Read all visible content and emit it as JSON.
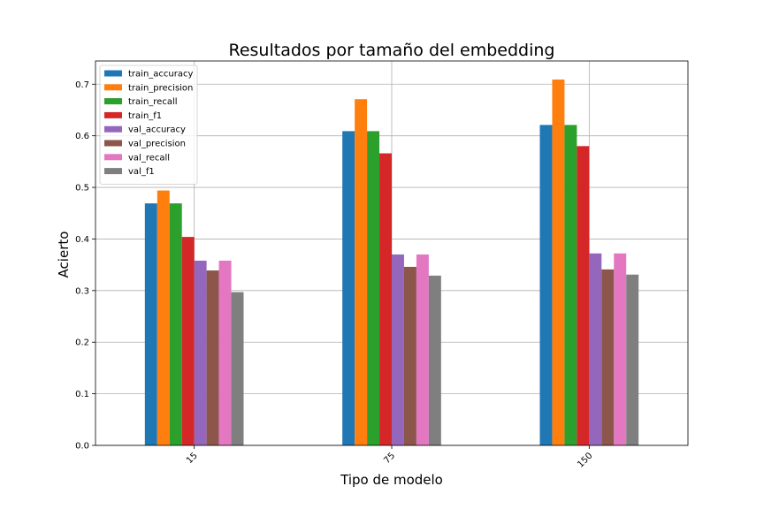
{
  "chart_data": {
    "type": "bar",
    "title": "Resultados por tamaño del embedding",
    "xlabel": "Tipo de modelo",
    "ylabel": "Acierto",
    "categories": [
      "15",
      "75",
      "150"
    ],
    "ylim": [
      0,
      0.745
    ],
    "yticks": [
      0.0,
      0.1,
      0.2,
      0.3,
      0.4,
      0.5,
      0.6,
      0.7
    ],
    "grid": true,
    "legend_position": "top-left",
    "xtick_rotation": 45,
    "series": [
      {
        "name": "train_accuracy",
        "color": "#1f77b4",
        "values": [
          0.469,
          0.609,
          0.621
        ]
      },
      {
        "name": "train_precision",
        "color": "#ff7f0e",
        "values": [
          0.494,
          0.671,
          0.709
        ]
      },
      {
        "name": "train_recall",
        "color": "#2ca02c",
        "values": [
          0.469,
          0.609,
          0.621
        ]
      },
      {
        "name": "train_f1",
        "color": "#d62728",
        "values": [
          0.404,
          0.566,
          0.58
        ]
      },
      {
        "name": "val_accuracy",
        "color": "#9467bd",
        "values": [
          0.358,
          0.37,
          0.372
        ]
      },
      {
        "name": "val_precision",
        "color": "#8c564b",
        "values": [
          0.339,
          0.346,
          0.341
        ]
      },
      {
        "name": "val_recall",
        "color": "#e377c2",
        "values": [
          0.358,
          0.37,
          0.372
        ]
      },
      {
        "name": "val_f1",
        "color": "#7f7f7f",
        "values": [
          0.297,
          0.329,
          0.331
        ]
      }
    ]
  }
}
